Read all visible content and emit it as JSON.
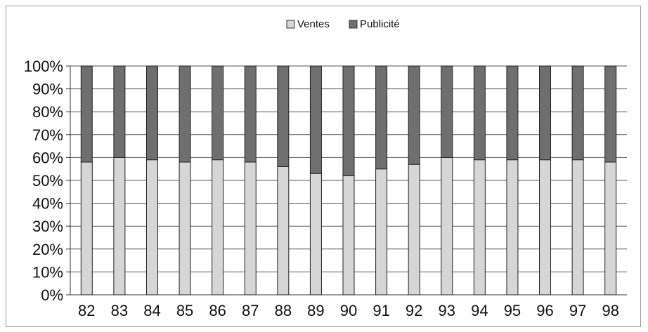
{
  "chart_data": {
    "type": "bar",
    "stacked": true,
    "categories": [
      "82",
      "83",
      "84",
      "85",
      "86",
      "87",
      "88",
      "89",
      "90",
      "91",
      "92",
      "93",
      "94",
      "95",
      "96",
      "97",
      "98"
    ],
    "series": [
      {
        "name": "Ventes",
        "color": "#d6d6d6",
        "values": [
          58,
          60,
          59,
          58,
          59,
          58,
          56,
          53,
          52,
          55,
          57,
          60,
          59,
          59,
          59,
          59,
          58
        ]
      },
      {
        "name": "Publicité",
        "color": "#6f6f6f",
        "values": [
          42,
          40,
          41,
          42,
          41,
          42,
          44,
          47,
          48,
          45,
          43,
          40,
          41,
          41,
          41,
          41,
          42
        ]
      }
    ],
    "ylim": [
      0,
      100
    ],
    "yticks": [
      "0%",
      "10%",
      "20%",
      "30%",
      "40%",
      "50%",
      "60%",
      "70%",
      "80%",
      "90%",
      "100%"
    ],
    "grid": true,
    "legend_position": "top"
  }
}
